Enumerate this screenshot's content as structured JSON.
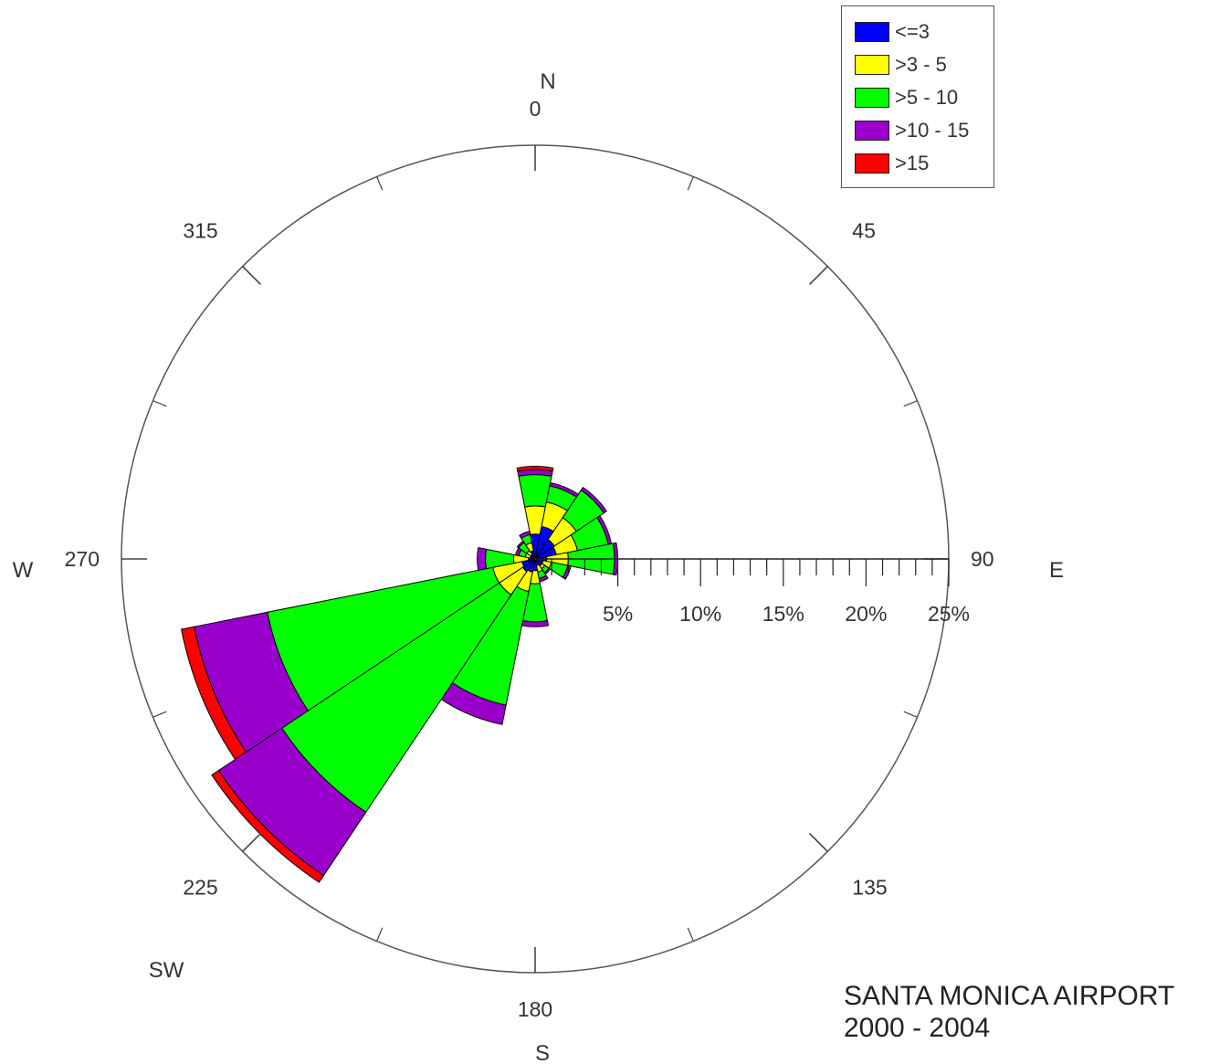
{
  "chart_data": {
    "type": "rose",
    "title": "SANTA MONICA AIRPORT",
    "subtitle": "2000 - 2004",
    "radial_axis": {
      "ticks": [
        "5%",
        "10%",
        "15%",
        "20%",
        "25%"
      ],
      "max": 25
    },
    "angle_labels": [
      {
        "deg": 0,
        "text": "0"
      },
      {
        "deg": 45,
        "text": "45"
      },
      {
        "deg": 90,
        "text": "90"
      },
      {
        "deg": 135,
        "text": "135"
      },
      {
        "deg": 180,
        "text": "180"
      },
      {
        "deg": 225,
        "text": "225"
      },
      {
        "deg": 270,
        "text": "270"
      },
      {
        "deg": 315,
        "text": "315"
      }
    ],
    "compass_labels": [
      {
        "deg": 0,
        "text": "N"
      },
      {
        "deg": 90,
        "text": "E"
      },
      {
        "deg": 180,
        "text": "S"
      },
      {
        "deg": 270,
        "text": "W"
      },
      {
        "deg": 225,
        "text": "SW"
      }
    ],
    "speed_bins": [
      {
        "name": "<=3",
        "color": "#0000ff"
      },
      {
        "name": ">3 - 5",
        "color": "#ffff00"
      },
      {
        "name": ">5 - 10",
        "color": "#00ff00"
      },
      {
        "name": ">10 - 15",
        "color": "#9900cc"
      },
      {
        "name": ">15",
        "color": "#ff0000"
      }
    ],
    "directions_deg": [
      0,
      22.5,
      45,
      67.5,
      90,
      112.5,
      135,
      157.5,
      180,
      202.5,
      225,
      247.5,
      270,
      292.5,
      315,
      337.5
    ],
    "cumulative_percent": [
      [
        1.5,
        3.2,
        5.1,
        5.4,
        5.6
      ],
      [
        2.0,
        3.5,
        4.5,
        4.7,
        4.7
      ],
      [
        1.4,
        3.0,
        5.0,
        5.2,
        5.2
      ],
      [
        1.3,
        2.6,
        4.5,
        4.7,
        4.7
      ],
      [
        0.7,
        2.0,
        4.8,
        5.0,
        5.0
      ],
      [
        0.5,
        1.0,
        2.0,
        2.2,
        2.2
      ],
      [
        0.5,
        0.7,
        1.0,
        1.1,
        1.1
      ],
      [
        0.4,
        0.8,
        1.2,
        1.4,
        1.4
      ],
      [
        0.7,
        1.5,
        3.8,
        4.1,
        4.1
      ],
      [
        0.8,
        2.0,
        9.0,
        10.2,
        10.2
      ],
      [
        0.9,
        2.6,
        18.4,
        23.0,
        23.5
      ],
      [
        0.8,
        2.6,
        16.5,
        21.0,
        21.8
      ],
      [
        0.4,
        1.3,
        3.0,
        3.5,
        3.5
      ],
      [
        0.3,
        0.6,
        1.0,
        1.2,
        1.2
      ],
      [
        0.3,
        0.6,
        1.2,
        1.3,
        1.3
      ],
      [
        0.5,
        1.0,
        1.5,
        1.7,
        1.7
      ]
    ]
  }
}
